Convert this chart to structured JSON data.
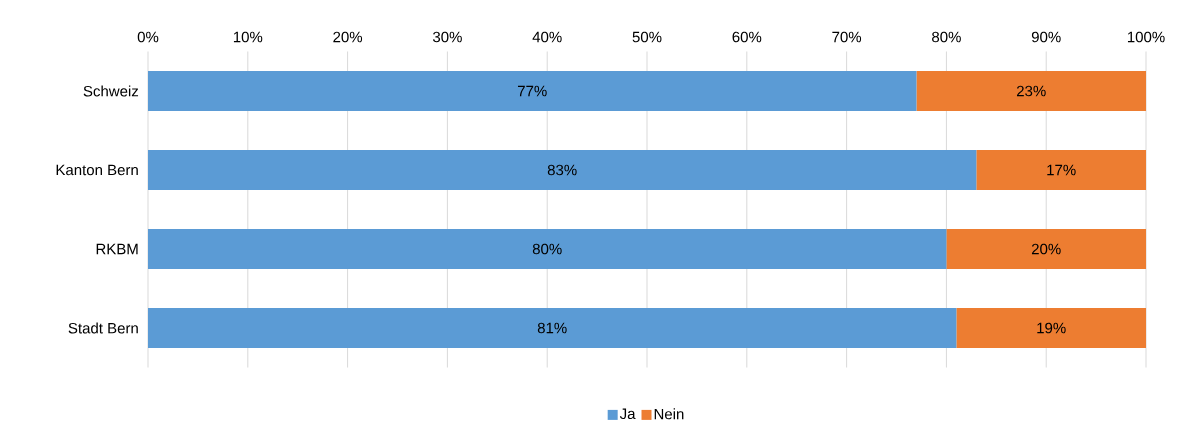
{
  "chart_data": {
    "type": "bar",
    "orientation": "horizontal",
    "stacked": true,
    "categories": [
      "Schweiz",
      "Kanton Bern",
      "RKBM",
      "Stadt Bern"
    ],
    "series": [
      {
        "name": "Ja",
        "color": "#5b9bd5",
        "values": [
          77,
          83,
          80,
          81
        ],
        "value_labels": [
          "77%",
          "83%",
          "80%",
          "81%"
        ]
      },
      {
        "name": "Nein",
        "color": "#ed7d31",
        "values": [
          23,
          17,
          20,
          19
        ],
        "value_labels": [
          "23%",
          "17%",
          "20%",
          "19%"
        ]
      }
    ],
    "xlim": [
      0,
      100
    ],
    "xticks": [
      {
        "value": 0,
        "label": "0%"
      },
      {
        "value": 10,
        "label": "10%"
      },
      {
        "value": 20,
        "label": "20%"
      },
      {
        "value": 30,
        "label": "30%"
      },
      {
        "value": 40,
        "label": "40%"
      },
      {
        "value": 50,
        "label": "50%"
      },
      {
        "value": 60,
        "label": "60%"
      },
      {
        "value": 70,
        "label": "70%"
      },
      {
        "value": 80,
        "label": "80%"
      },
      {
        "value": 90,
        "label": "90%"
      },
      {
        "value": 100,
        "label": "100%"
      }
    ],
    "grid": "x",
    "legend": "bottom"
  }
}
